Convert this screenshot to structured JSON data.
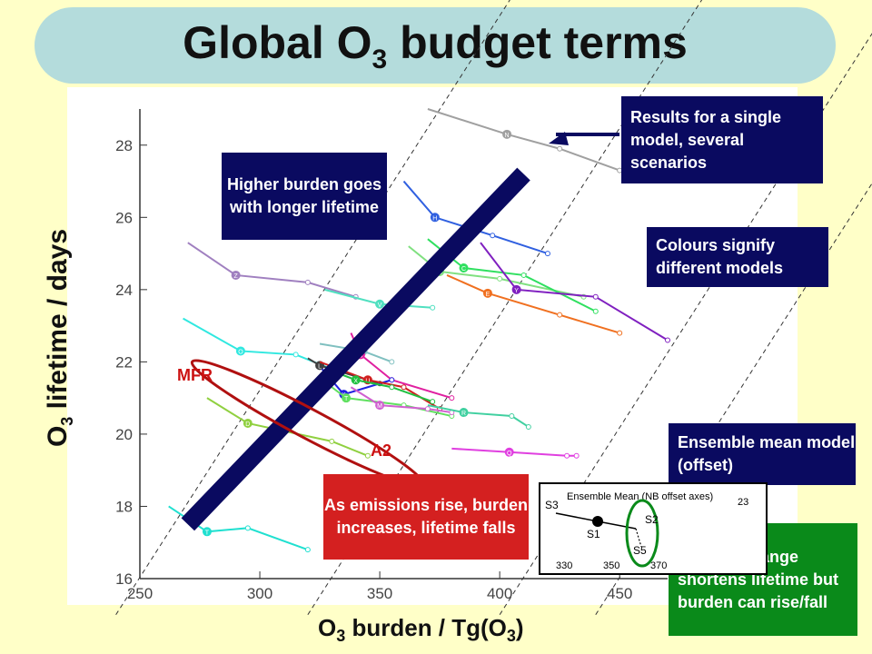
{
  "title": {
    "main": "Global O",
    "sub": "3",
    "rest": " budget terms"
  },
  "axes": {
    "y_label": {
      "pre": "O",
      "sub": "3",
      "post": " lifetime / days"
    },
    "x_label": {
      "pre": "O",
      "sub": "3",
      "mid": " burden / Tg(O",
      "sub2": "3",
      "post": ")"
    }
  },
  "annotations": {
    "higher_burden": "Higher burden goes with longer lifetime",
    "single_model": "Results for a single model, several scenarios",
    "colours": "Colours signify different models",
    "ensemble": "Ensemble mean model (offset)",
    "emissions": "As emissions rise, burden increases, lifetime falls",
    "climate": "Climate change shortens lifetime but burden can rise/fall",
    "mfr": "MFR",
    "a2": "A2"
  },
  "inset": {
    "title": "Ensemble Mean (NB offset axes)",
    "labels": [
      "S3",
      "S1",
      "S2",
      "S5"
    ],
    "y_tick": "23",
    "x_ticks": [
      "330",
      "350",
      "370"
    ]
  },
  "colors": {
    "navy": "#0a0a60",
    "red": "#d42020",
    "green": "#0a8a1a",
    "title_bg": "#b4dcdc",
    "page_bg": "#ffffc8"
  },
  "chart_data": {
    "type": "line",
    "xlim": [
      250,
      470
    ],
    "ylim": [
      16,
      29
    ],
    "x_ticks": [
      250,
      300,
      350,
      400,
      450
    ],
    "y_ticks": [
      16,
      18,
      20,
      22,
      24,
      26,
      28
    ],
    "x_tick_labels": [
      "250",
      "300",
      "350",
      "400",
      "450"
    ],
    "y_tick_labels": [
      "16",
      "18",
      "20",
      "22",
      "24",
      "26",
      "28"
    ],
    "guide_lines": [
      [
        240,
        15
      ],
      [
        320,
        15
      ],
      [
        400,
        15
      ],
      [
        440,
        15
      ]
    ],
    "trend_bar": {
      "from": [
        270,
        17.5
      ],
      "to": [
        410,
        27.2
      ]
    },
    "mfr_a2_ellipse": {
      "center": [
        320,
        20.3
      ],
      "rx": 42,
      "ry": 0.9,
      "angle_deg": 28
    },
    "series": [
      {
        "color": "#a0a0a0",
        "points": [
          [
            370,
            29.0
          ],
          [
            403,
            28.3
          ],
          [
            425,
            27.9
          ],
          [
            450,
            27.3
          ]
        ],
        "marker": "N"
      },
      {
        "color": "#3060e0",
        "points": [
          [
            360,
            27.0
          ],
          [
            373,
            26.0
          ],
          [
            397,
            25.5
          ],
          [
            420,
            25.0
          ]
        ],
        "marker": "H"
      },
      {
        "color": "#a080c0",
        "points": [
          [
            270,
            25.3
          ],
          [
            290,
            24.4
          ],
          [
            320,
            24.2
          ],
          [
            340,
            23.8
          ]
        ],
        "marker": "Z"
      },
      {
        "color": "#30e8e0",
        "points": [
          [
            268,
            23.2
          ],
          [
            292,
            22.3
          ],
          [
            315,
            22.2
          ],
          [
            330,
            21.8
          ]
        ],
        "marker": "O"
      },
      {
        "color": "#80c0c0",
        "points": [
          [
            325,
            22.5
          ],
          [
            343,
            22.3
          ],
          [
            355,
            22.0
          ]
        ],
        "marker": "J"
      },
      {
        "color": "#50e0c0",
        "points": [
          [
            327,
            24.0
          ],
          [
            350,
            23.6
          ],
          [
            372,
            23.5
          ]
        ],
        "marker": "V"
      },
      {
        "color": "#80e080",
        "points": [
          [
            362,
            25.2
          ],
          [
            375,
            24.5
          ],
          [
            400,
            24.3
          ],
          [
            435,
            23.8
          ]
        ],
        "marker": "G"
      },
      {
        "color": "#30e060",
        "points": [
          [
            370,
            25.4
          ],
          [
            385,
            24.6
          ],
          [
            410,
            24.4
          ],
          [
            440,
            23.4
          ]
        ],
        "marker": "C"
      },
      {
        "color": "#f07020",
        "points": [
          [
            378,
            24.4
          ],
          [
            395,
            23.9
          ],
          [
            425,
            23.3
          ],
          [
            450,
            22.8
          ]
        ],
        "marker": "E"
      },
      {
        "color": "#8020c0",
        "points": [
          [
            392,
            25.3
          ],
          [
            407,
            24.0
          ],
          [
            440,
            23.8
          ],
          [
            470,
            22.6
          ]
        ],
        "marker": "Y"
      },
      {
        "color": "#e020a0",
        "points": [
          [
            338,
            22.8
          ],
          [
            342,
            22.2
          ],
          [
            355,
            21.5
          ],
          [
            380,
            21.0
          ]
        ],
        "marker": "B"
      },
      {
        "color": "#404040",
        "points": [
          [
            320,
            22.1
          ],
          [
            325,
            21.9
          ],
          [
            350,
            21.4
          ]
        ],
        "marker": "L"
      },
      {
        "color": "#2020e0",
        "points": [
          [
            326,
            21.8
          ],
          [
            335,
            21.1
          ],
          [
            355,
            21.5
          ]
        ],
        "marker": "K"
      },
      {
        "color": "#d02020",
        "points": [
          [
            325,
            22.0
          ],
          [
            345,
            21.5
          ],
          [
            360,
            21.3
          ],
          [
            375,
            20.7
          ]
        ],
        "marker": "U"
      },
      {
        "color": "#20c040",
        "points": [
          [
            332,
            21.7
          ],
          [
            340,
            21.5
          ],
          [
            355,
            21.3
          ],
          [
            372,
            20.9
          ]
        ],
        "marker": "X"
      },
      {
        "color": "#60e060",
        "points": [
          [
            328,
            21.4
          ],
          [
            336,
            21.0
          ],
          [
            360,
            20.8
          ],
          [
            380,
            20.5
          ]
        ],
        "marker": "T"
      },
      {
        "color": "#d060d0",
        "points": [
          [
            338,
            21.3
          ],
          [
            350,
            20.8
          ],
          [
            370,
            20.7
          ],
          [
            380,
            20.6
          ]
        ],
        "marker": "M"
      },
      {
        "color": "#40d0a0",
        "points": [
          [
            370,
            20.8
          ],
          [
            385,
            20.6
          ],
          [
            405,
            20.5
          ],
          [
            412,
            20.2
          ]
        ],
        "marker": "R"
      },
      {
        "color": "#e040e0",
        "points": [
          [
            380,
            19.6
          ],
          [
            404,
            19.5
          ],
          [
            428,
            19.4
          ],
          [
            432,
            19.4
          ]
        ],
        "marker": "Q"
      },
      {
        "color": "#90d040",
        "points": [
          [
            278,
            21.0
          ],
          [
            295,
            20.3
          ],
          [
            330,
            19.8
          ],
          [
            345,
            19.4
          ]
        ],
        "marker": "D"
      },
      {
        "color": "#20e0d0",
        "points": [
          [
            262,
            18.0
          ],
          [
            278,
            17.3
          ],
          [
            295,
            17.4
          ],
          [
            320,
            16.8
          ]
        ],
        "marker": "T"
      }
    ]
  }
}
